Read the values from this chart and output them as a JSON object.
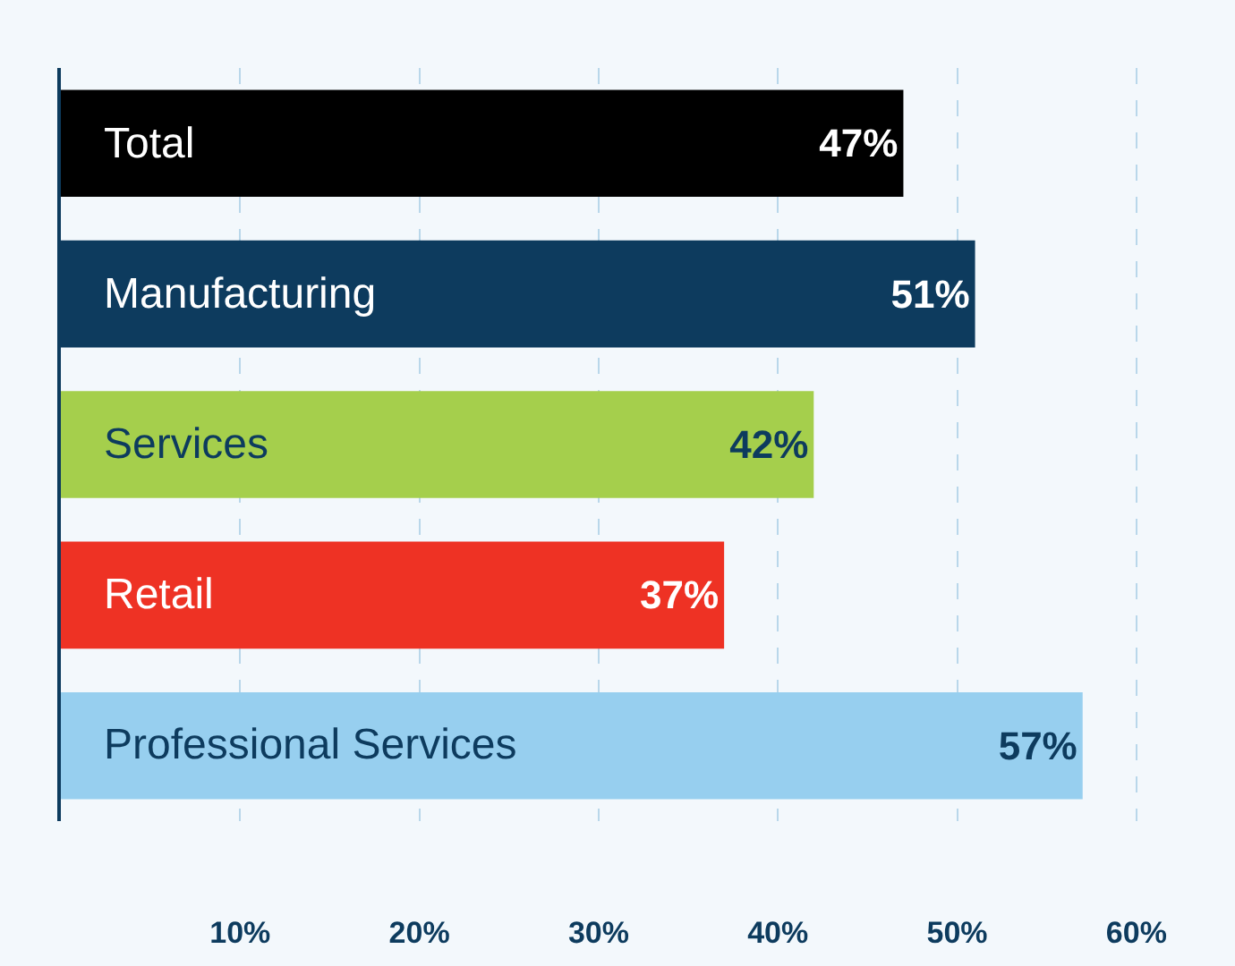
{
  "chart_data": {
    "type": "bar",
    "orientation": "horizontal",
    "categories": [
      "Total",
      "Manufacturing",
      "Services",
      "Retail",
      "Professional Services"
    ],
    "values": [
      47,
      51,
      42,
      37,
      57
    ],
    "colors": [
      "#000000",
      "#0d3b5e",
      "#a5cf4c",
      "#ee3224",
      "#97cfef"
    ],
    "xlim": [
      0,
      65.5
    ],
    "xticks": [
      {
        "value": 10,
        "label": "10%"
      },
      {
        "value": 20,
        "label": "20%"
      },
      {
        "value": 30,
        "label": "30%"
      },
      {
        "value": 40,
        "label": "40%"
      },
      {
        "value": 50,
        "label": "50%"
      },
      {
        "value": 60,
        "label": "60%"
      }
    ],
    "value_labels": [
      "47%",
      "51%",
      "42%",
      "37%",
      "57%"
    ],
    "grid": "x"
  }
}
